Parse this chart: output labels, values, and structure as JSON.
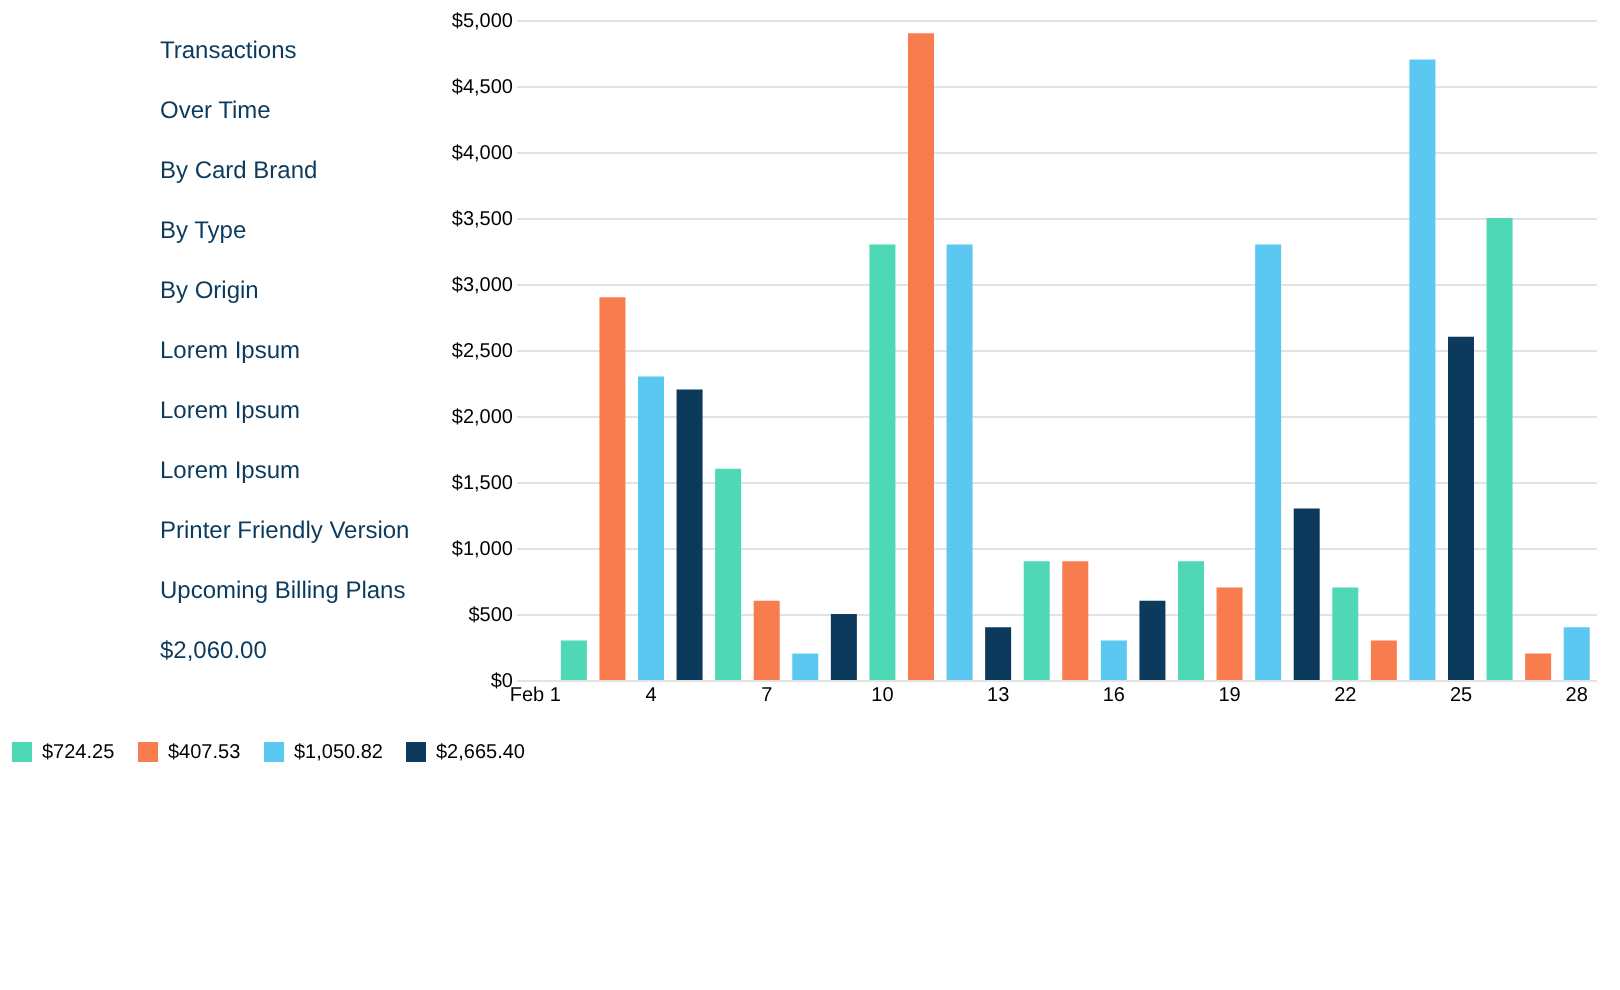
{
  "chart_data": {
    "type": "bar",
    "categories": [
      "Feb 1",
      null,
      null,
      "4",
      null,
      null,
      "7",
      null,
      null,
      "10",
      null,
      null,
      "13",
      null,
      null,
      "16",
      null,
      null,
      "19",
      null,
      null,
      "22",
      null,
      null,
      "25",
      null,
      null,
      "28"
    ],
    "series": [
      {
        "name": "$724.25",
        "color": "#4fd8b5",
        "values": [
          null,
          300,
          null,
          null,
          null,
          1600,
          null,
          null,
          null,
          3300,
          null,
          null,
          null,
          900,
          null,
          null,
          null,
          900,
          null,
          null,
          null,
          700,
          null,
          null,
          null,
          3500,
          null,
          null
        ]
      },
      {
        "name": "$407.53",
        "color": "#f97c4e",
        "values": [
          null,
          null,
          2900,
          null,
          null,
          null,
          600,
          null,
          null,
          null,
          4900,
          null,
          null,
          null,
          900,
          null,
          null,
          null,
          700,
          null,
          null,
          null,
          300,
          null,
          null,
          null,
          200,
          null
        ]
      },
      {
        "name": "$1,050.82",
        "color": "#5ac8f0",
        "values": [
          null,
          null,
          null,
          2300,
          null,
          null,
          null,
          200,
          null,
          null,
          null,
          3300,
          null,
          null,
          null,
          300,
          null,
          null,
          null,
          3300,
          null,
          null,
          null,
          4700,
          null,
          null,
          null,
          400
        ]
      },
      {
        "name": "$2,665.40",
        "color": "#0b3a5c",
        "values": [
          null,
          null,
          null,
          null,
          2200,
          null,
          null,
          null,
          500,
          null,
          null,
          null,
          400,
          null,
          null,
          null,
          600,
          null,
          null,
          null,
          1300,
          null,
          null,
          null,
          2600,
          null,
          null,
          null
        ]
      }
    ],
    "ylim": [
      0,
      5000
    ],
    "yticks": [
      {
        "value": 0,
        "label": "$0"
      },
      {
        "value": 500,
        "label": "$500"
      },
      {
        "value": 1000,
        "label": "$1,000"
      },
      {
        "value": 1500,
        "label": "$1,500"
      },
      {
        "value": 2000,
        "label": "$2,000"
      },
      {
        "value": 2500,
        "label": "$2,500"
      },
      {
        "value": 3000,
        "label": "$3,000"
      },
      {
        "value": 3500,
        "label": "$3,500"
      },
      {
        "value": 4000,
        "label": "$4,000"
      },
      {
        "value": 4500,
        "label": "$4,500"
      },
      {
        "value": 5000,
        "label": "$5,000"
      }
    ],
    "grid": "y",
    "legend": "bottom",
    "annotations": [
      "Transactions",
      "Over Time",
      "By Card Brand",
      "By Type",
      "By Origin",
      "Lorem Ipsum",
      "Lorem Ipsum",
      "Lorem Ipsum",
      "Printer Friendly Version",
      "Upcoming Billing Plans",
      "$2,060.00"
    ]
  }
}
